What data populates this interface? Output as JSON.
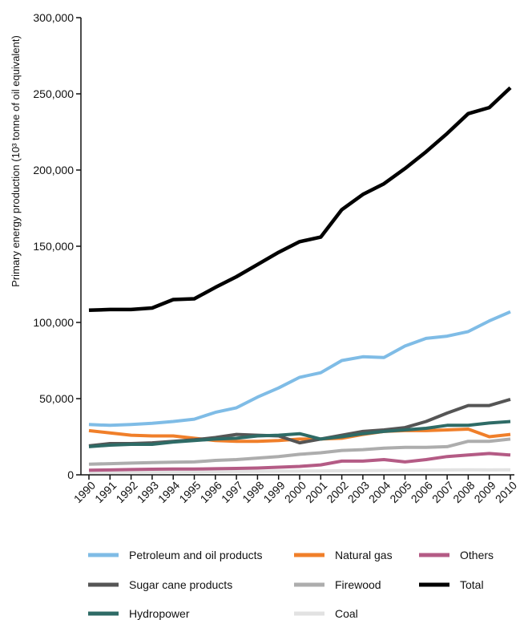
{
  "chart_data": {
    "type": "line",
    "ylabel": "Primary energy production (10³ tonne of oil equivalent)",
    "xlabel": "",
    "ylim": [
      0,
      300000
    ],
    "yticks": [
      0,
      50000,
      100000,
      150000,
      200000,
      250000,
      300000
    ],
    "ytick_labels": [
      "0",
      "50,000",
      "100,000",
      "150,000",
      "200,000",
      "250,000",
      "300,000"
    ],
    "categories": [
      "1990",
      "1991",
      "1992",
      "1993",
      "1994",
      "1995",
      "1996",
      "1997",
      "1998",
      "1999",
      "2000",
      "2001",
      "2002",
      "2003",
      "2004",
      "2005",
      "2006",
      "2007",
      "2008",
      "2009",
      "2010"
    ],
    "grid": false,
    "legend_position": "bottom",
    "series": [
      {
        "name": "Petroleum and oil products",
        "color": "#7fbce6",
        "values": [
          33000,
          32500,
          33000,
          33800,
          35000,
          36500,
          41000,
          44000,
          51000,
          57000,
          64000,
          67000,
          75000,
          77500,
          77000,
          84500,
          89500,
          91000,
          94000,
          101000,
          107000
        ]
      },
      {
        "name": "Natural gas",
        "color": "#f07f2a",
        "values": [
          29000,
          27500,
          26000,
          25500,
          25500,
          24000,
          22500,
          22000,
          22000,
          22500,
          23500,
          23500,
          24000,
          26500,
          28500,
          29000,
          29000,
          29500,
          30000,
          25000,
          26500
        ]
      },
      {
        "name": "Others",
        "color": "#b45b85",
        "values": [
          3000,
          3200,
          3500,
          3700,
          3800,
          3800,
          4000,
          4200,
          4500,
          5000,
          5500,
          6500,
          9000,
          9000,
          10000,
          8500,
          10000,
          12000,
          13000,
          14000,
          13000
        ]
      },
      {
        "name": "Sugar cane products",
        "color": "#555555",
        "values": [
          19000,
          20500,
          20500,
          21000,
          22000,
          23000,
          24500,
          26500,
          26000,
          25500,
          21000,
          23500,
          26000,
          28500,
          29500,
          31000,
          35000,
          40500,
          45500,
          45500,
          49500
        ]
      },
      {
        "name": "Firewood",
        "color": "#adadad",
        "values": [
          7000,
          7300,
          7700,
          8000,
          8300,
          8500,
          9500,
          10000,
          11000,
          12000,
          13500,
          14500,
          16000,
          16500,
          17500,
          18000,
          18000,
          18500,
          22000,
          22000,
          23500
        ]
      },
      {
        "name": "Total",
        "color": "#000000",
        "values": [
          108000,
          108500,
          108500,
          109500,
          115000,
          115500,
          123000,
          130000,
          138000,
          146000,
          153000,
          156000,
          174000,
          184000,
          191000,
          201000,
          212000,
          224000,
          237000,
          241000,
          254000
        ]
      },
      {
        "name": "Hydropower",
        "color": "#2e6b66",
        "values": [
          18500,
          19500,
          20000,
          20000,
          21500,
          22500,
          23500,
          24000,
          25500,
          26000,
          27000,
          23500,
          25000,
          27000,
          28500,
          29500,
          30500,
          32500,
          32500,
          34000,
          35000
        ]
      },
      {
        "name": "Coal",
        "color": "#e2e2e2",
        "values": [
          1500,
          1600,
          1700,
          1800,
          1900,
          2000,
          2100,
          2200,
          2300,
          2400,
          2500,
          2600,
          2700,
          2800,
          2900,
          3000,
          3100,
          3200,
          3300,
          3200,
          3300
        ]
      }
    ]
  }
}
